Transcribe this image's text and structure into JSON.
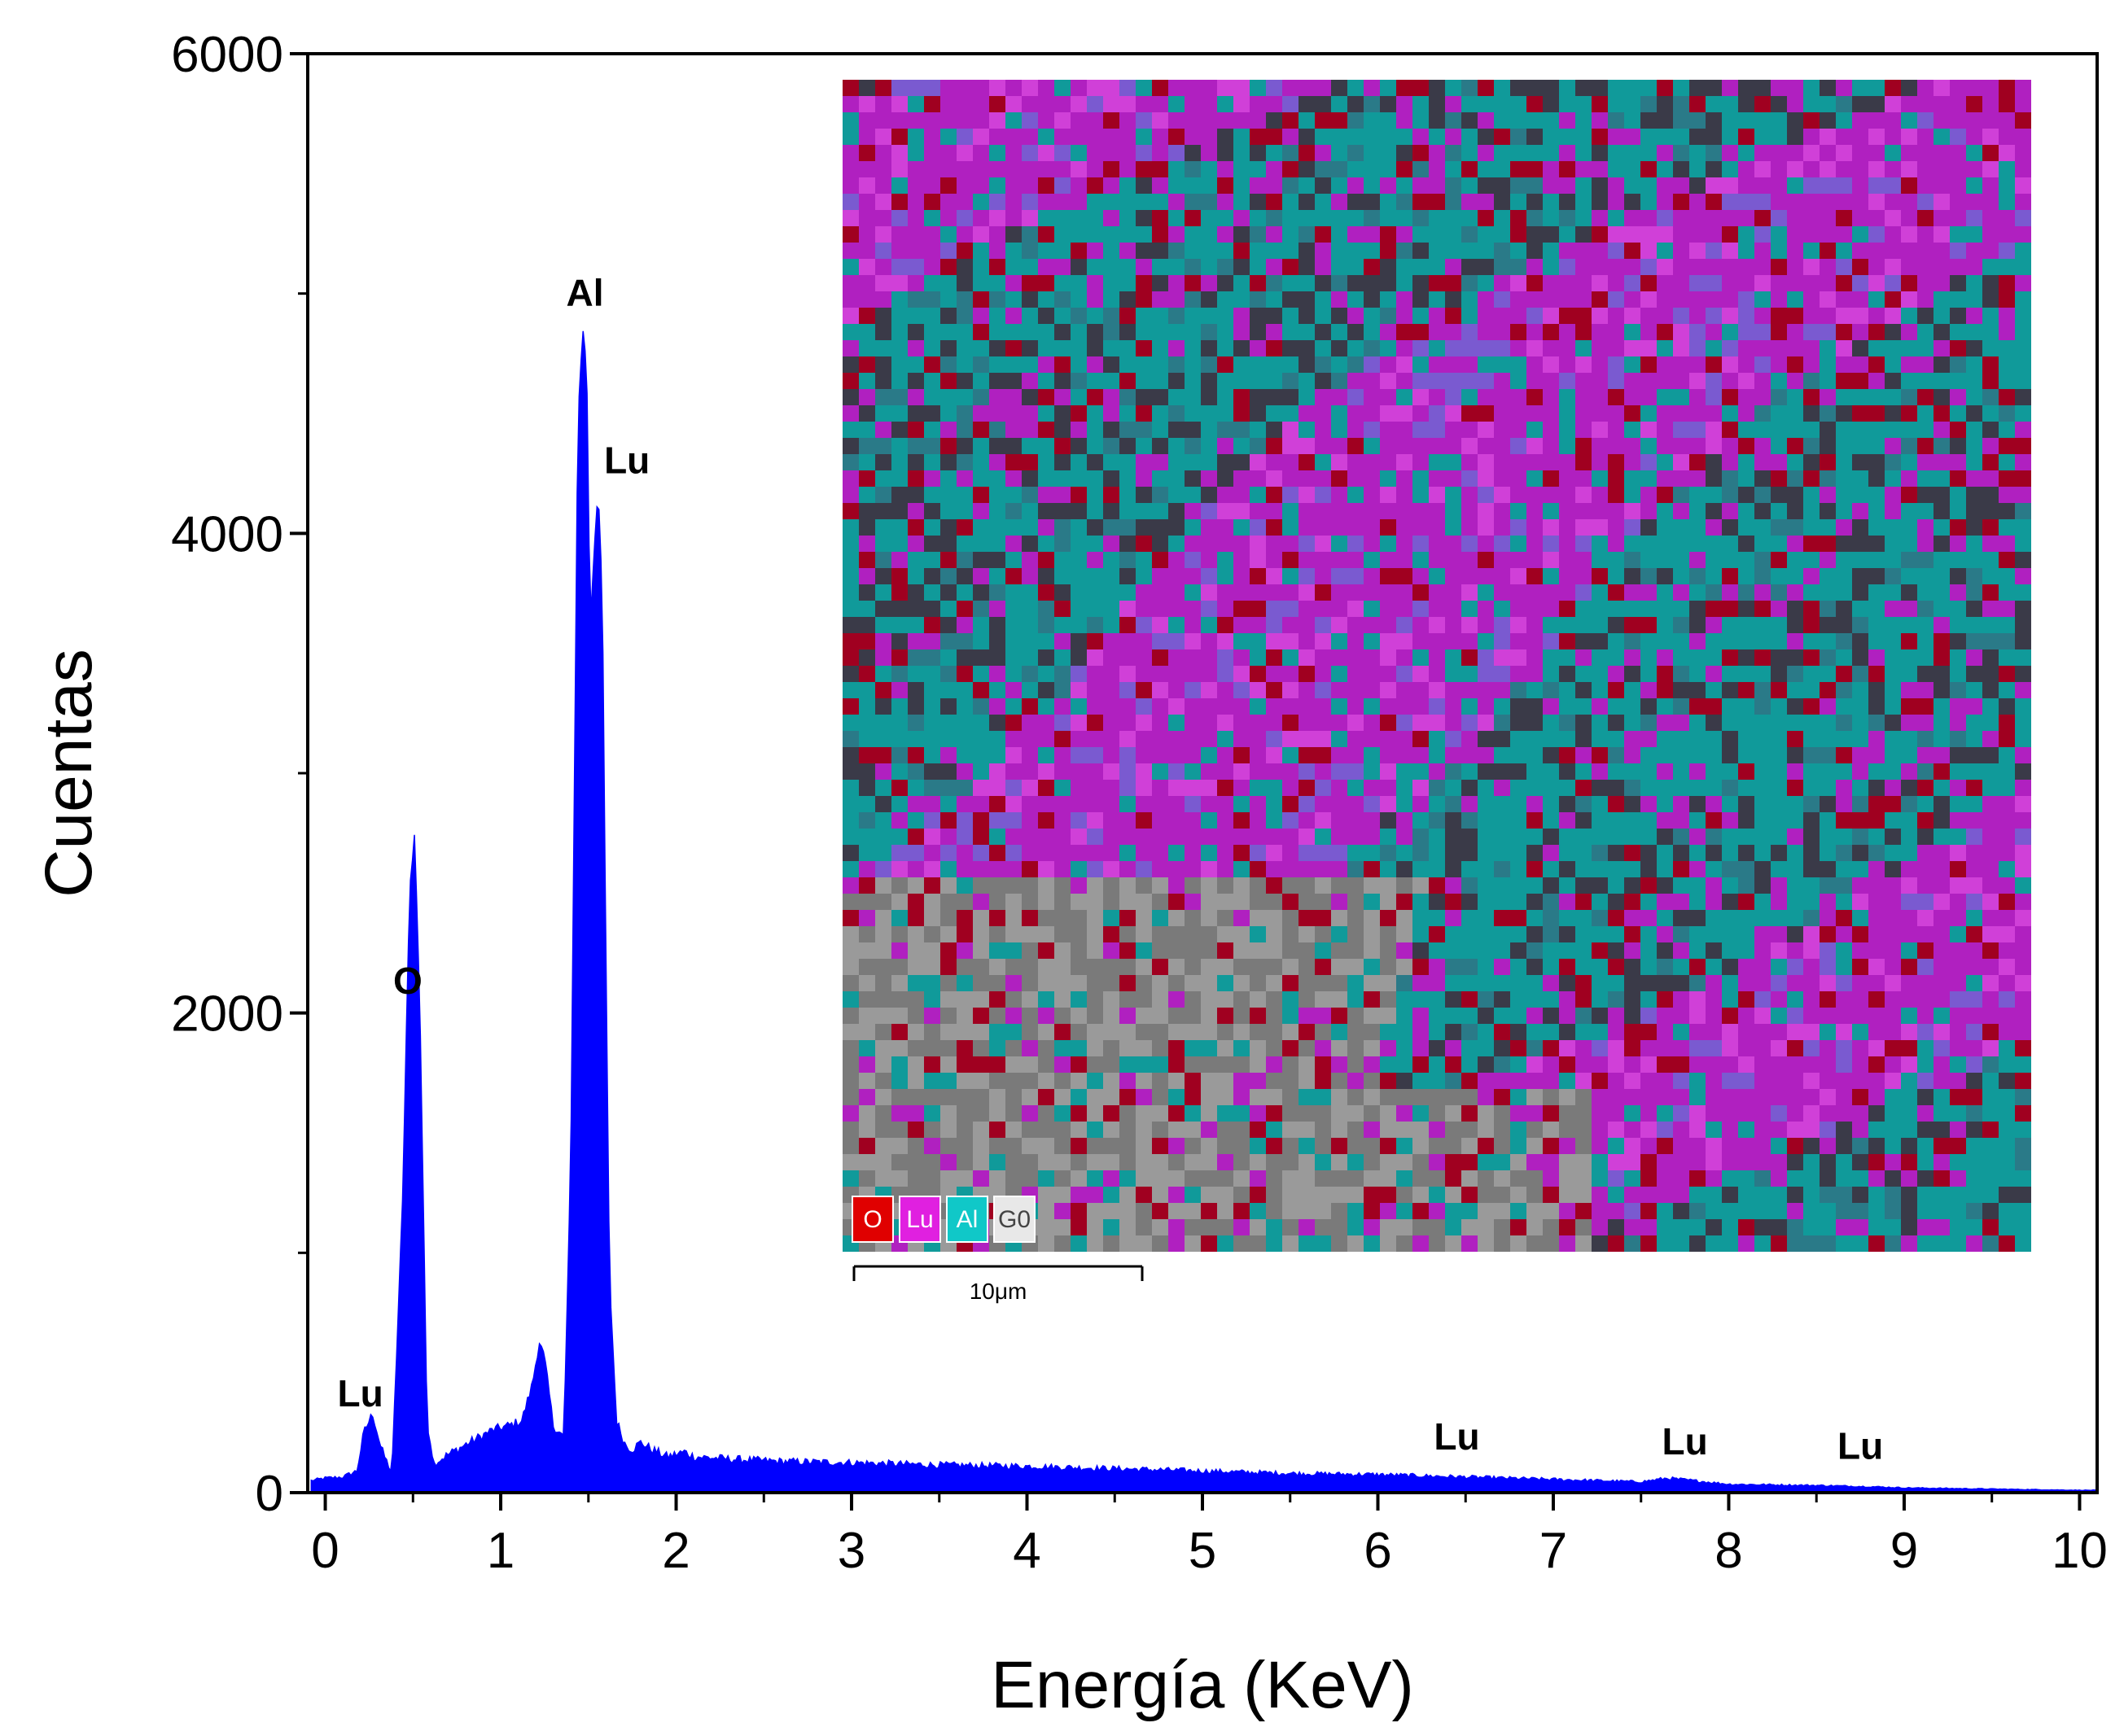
{
  "chart_data": {
    "type": "area",
    "xlabel": "Energía (KeV)",
    "ylabel": "Cuentas",
    "xlim": [
      -0.1,
      10.1
    ],
    "ylim": [
      0,
      6000
    ],
    "x_ticks": [
      0,
      1,
      2,
      3,
      4,
      5,
      6,
      7,
      8,
      9,
      10
    ],
    "y_ticks": [
      0,
      2000,
      4000,
      6000
    ],
    "grid": false,
    "series_color": "#0000ff",
    "spectrum": {
      "x": [
        -0.08,
        0.0,
        0.1,
        0.18,
        0.22,
        0.27,
        0.32,
        0.38,
        0.44,
        0.48,
        0.51,
        0.54,
        0.58,
        0.62,
        0.68,
        0.8,
        0.95,
        1.05,
        1.12,
        1.18,
        1.22,
        1.25,
        1.3,
        1.36,
        1.4,
        1.44,
        1.47,
        1.49,
        1.51,
        1.53,
        1.555,
        1.58,
        1.6,
        1.62,
        1.66,
        1.71,
        1.75,
        1.8,
        1.86,
        1.95,
        2.05,
        2.1,
        2.3,
        2.6,
        3.0,
        3.5,
        4.0,
        4.5,
        5.0,
        5.5,
        6.0,
        6.5,
        7.0,
        7.5,
        7.65,
        7.8,
        8.0,
        8.5,
        8.8,
        9.0,
        9.5,
        10.0,
        10.1
      ],
      "y": [
        50,
        60,
        65,
        90,
        250,
        330,
        180,
        80,
        1200,
        2500,
        2750,
        2000,
        300,
        120,
        150,
        200,
        260,
        280,
        300,
        450,
        630,
        560,
        280,
        230,
        1400,
        4500,
        4850,
        4700,
        3600,
        3900,
        4200,
        3700,
        2200,
        900,
        300,
        200,
        180,
        210,
        180,
        150,
        170,
        150,
        140,
        130,
        125,
        115,
        110,
        100,
        90,
        80,
        75,
        65,
        55,
        45,
        60,
        50,
        35,
        30,
        25,
        20,
        15,
        10,
        10
      ]
    },
    "annotations": [
      {
        "text": "Al",
        "x": 1.48,
        "y": 4950
      },
      {
        "text": "Lu",
        "x": 1.72,
        "y": 4250
      },
      {
        "text": "O",
        "x": 0.47,
        "y": 2080
      },
      {
        "text": "Lu",
        "x": 0.2,
        "y": 360
      },
      {
        "text": "Lu",
        "x": 6.45,
        "y": 180
      },
      {
        "text": "Lu",
        "x": 7.75,
        "y": 160
      },
      {
        "text": "Lu",
        "x": 8.75,
        "y": 140
      }
    ],
    "inset": {
      "legend": [
        {
          "label": "O",
          "color": "#e00000"
        },
        {
          "label": "Lu",
          "color": "#e020e0"
        },
        {
          "label": "Al",
          "color": "#10c8c8"
        },
        {
          "label": "G0",
          "color": "#e8e8e8"
        }
      ],
      "scale_bar": "10μm",
      "palette": {
        "magenta": "#b020c0",
        "cyan": "#109a9a",
        "red": "#a00020",
        "gray": "#7a7a7a",
        "dark": "#3a3a48"
      }
    }
  }
}
